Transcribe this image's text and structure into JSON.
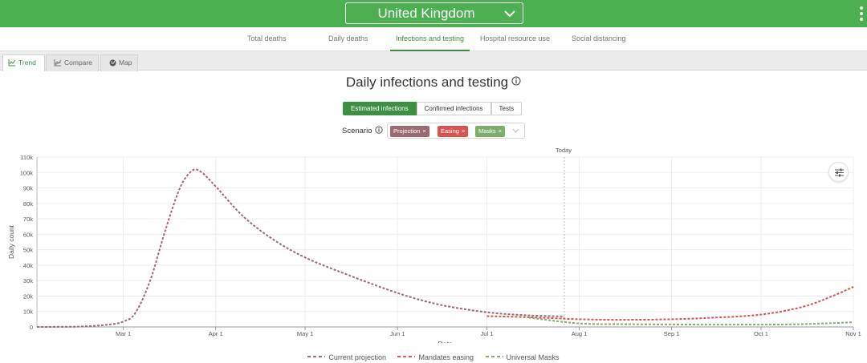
{
  "header": {
    "location": "United Kingdom",
    "location_icon": "chevron-down-icon",
    "menu_icon": "kebab-menu-icon",
    "bg_color": "#4caf50"
  },
  "nav": {
    "tabs": [
      {
        "label": "Total deaths",
        "active": false
      },
      {
        "label": "Daily deaths",
        "active": false
      },
      {
        "label": "Infections and testing",
        "active": true
      },
      {
        "label": "Hospital resource use",
        "active": false
      },
      {
        "label": "Social distancing",
        "active": false
      }
    ],
    "active_color": "#3d8f41"
  },
  "view_tabs": [
    {
      "label": "Trend",
      "icon": "line-chart-icon",
      "active": true
    },
    {
      "label": "Compare",
      "icon": "compare-chart-icon",
      "active": false
    },
    {
      "label": "Map",
      "icon": "globe-icon",
      "active": false
    }
  ],
  "panel": {
    "title": "Daily infections and testing",
    "metric_buttons": [
      {
        "label": "Estimated infections",
        "active": true
      },
      {
        "label": "Confirmed infections",
        "active": false
      },
      {
        "label": "Tests",
        "active": false
      }
    ],
    "scenario_label": "Scenario",
    "scenario_chips": [
      {
        "label": "Projection",
        "color": "#9b6b73"
      },
      {
        "label": "Easing",
        "color": "#d9534f"
      },
      {
        "label": "Masks",
        "color": "#7fae6c"
      }
    ],
    "remove_symbol": "×"
  },
  "chart_data": {
    "type": "line",
    "ylabel": "Daily count",
    "xlabel": "Date",
    "ylim": [
      0,
      110000
    ],
    "y_ticks": [
      {
        "value": 0,
        "label": "0"
      },
      {
        "value": 10000,
        "label": "10k"
      },
      {
        "value": 20000,
        "label": "20k"
      },
      {
        "value": 30000,
        "label": "30k"
      },
      {
        "value": 40000,
        "label": "40k"
      },
      {
        "value": 50000,
        "label": "50k"
      },
      {
        "value": 60000,
        "label": "60k"
      },
      {
        "value": 70000,
        "label": "70k"
      },
      {
        "value": 80000,
        "label": "80k"
      },
      {
        "value": 90000,
        "label": "90k"
      },
      {
        "value": 100000,
        "label": "100k"
      },
      {
        "value": 110000,
        "label": "110k"
      }
    ],
    "xlim": [
      "2020-02-01",
      "2020-11-01"
    ],
    "x_ticks": [
      {
        "date": "2020-03-01",
        "label": "Mar 1"
      },
      {
        "date": "2020-04-01",
        "label": "Apr 1"
      },
      {
        "date": "2020-05-01",
        "label": "May 1"
      },
      {
        "date": "2020-06-01",
        "label": "Jun 1"
      },
      {
        "date": "2020-07-01",
        "label": "Jul 1"
      },
      {
        "date": "2020-08-01",
        "label": "Aug 1"
      },
      {
        "date": "2020-09-01",
        "label": "Sep 1"
      },
      {
        "date": "2020-10-01",
        "label": "Oct 1"
      },
      {
        "date": "2020-11-01",
        "label": "Nov 1"
      }
    ],
    "today": {
      "date": "2020-07-27",
      "label": "Today"
    },
    "grid": true,
    "legend_position": "bottom",
    "settings_icon": "sliders-icon",
    "series": [
      {
        "name": "Current projection",
        "color": "#9b6b73",
        "points": [
          [
            "2020-02-01",
            0
          ],
          [
            "2020-02-15",
            200
          ],
          [
            "2020-02-25",
            1500
          ],
          [
            "2020-03-01",
            3500
          ],
          [
            "2020-03-05",
            9000
          ],
          [
            "2020-03-10",
            30000
          ],
          [
            "2020-03-15",
            62000
          ],
          [
            "2020-03-20",
            90000
          ],
          [
            "2020-03-24",
            101000
          ],
          [
            "2020-03-27",
            100500
          ],
          [
            "2020-04-01",
            91000
          ],
          [
            "2020-04-10",
            72000
          ],
          [
            "2020-04-20",
            57000
          ],
          [
            "2020-05-01",
            45000
          ],
          [
            "2020-05-15",
            34000
          ],
          [
            "2020-06-01",
            22000
          ],
          [
            "2020-06-15",
            14500
          ],
          [
            "2020-07-01",
            9500
          ],
          [
            "2020-07-15",
            7500
          ],
          [
            "2020-07-27",
            6800
          ]
        ]
      },
      {
        "name": "Mandates easing",
        "color": "#d9534f",
        "points": [
          [
            "2020-07-01",
            7000
          ],
          [
            "2020-07-15",
            6300
          ],
          [
            "2020-08-01",
            5000
          ],
          [
            "2020-08-15",
            4600
          ],
          [
            "2020-09-01",
            5000
          ],
          [
            "2020-09-15",
            6000
          ],
          [
            "2020-10-01",
            8000
          ],
          [
            "2020-10-15",
            13000
          ],
          [
            "2020-10-25",
            20000
          ],
          [
            "2020-11-01",
            26000
          ]
        ]
      },
      {
        "name": "Universal Masks",
        "color": "#7fae6c",
        "points": [
          [
            "2020-07-15",
            6000
          ],
          [
            "2020-08-01",
            2300
          ],
          [
            "2020-08-15",
            1800
          ],
          [
            "2020-09-01",
            1600
          ],
          [
            "2020-09-15",
            1500
          ],
          [
            "2020-10-01",
            1500
          ],
          [
            "2020-10-15",
            1800
          ],
          [
            "2020-11-01",
            3000
          ]
        ]
      }
    ]
  }
}
